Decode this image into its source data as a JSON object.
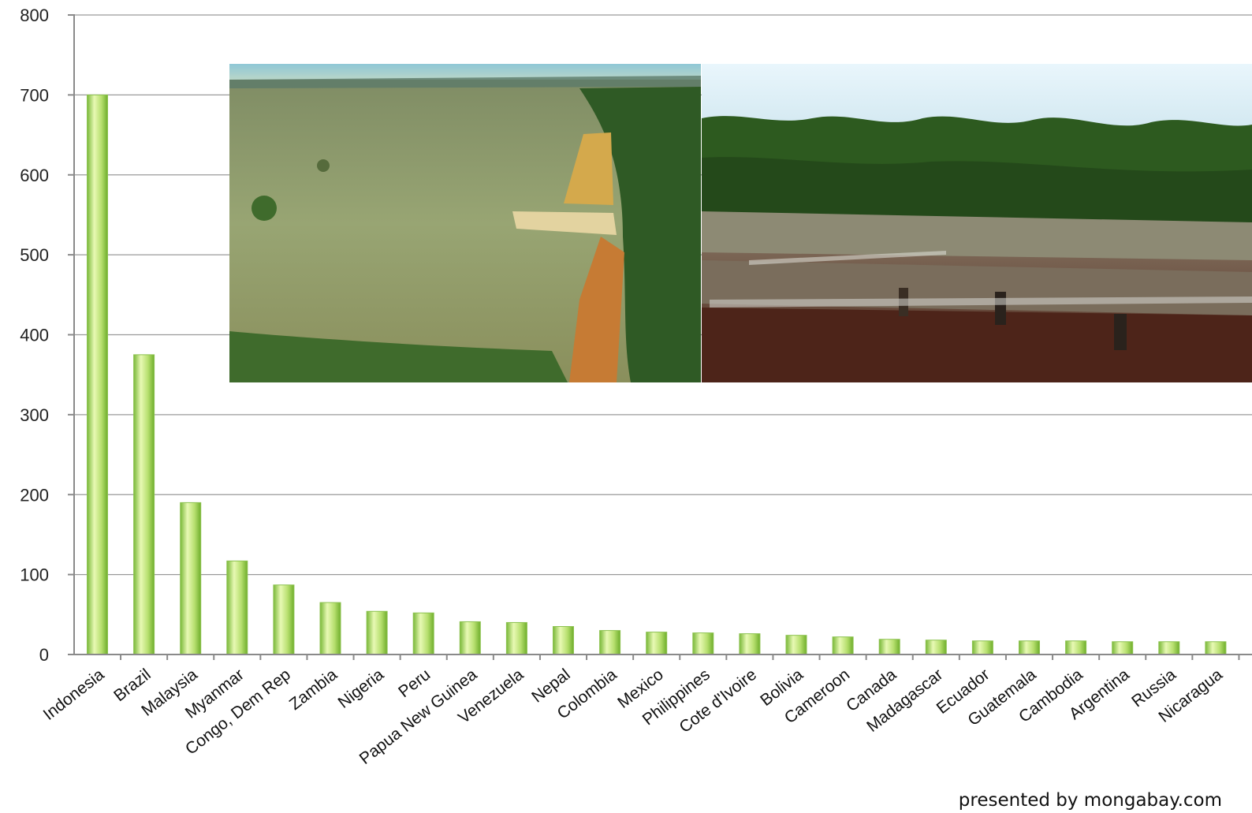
{
  "chart_data": {
    "type": "bar",
    "categories": [
      "Indonesia",
      "Brazil",
      "Malaysia",
      "Myanmar",
      "Congo, Dem Rep",
      "Zambia",
      "Nigeria",
      "Peru",
      "Papua New Guinea",
      "Venezuela",
      "Nepal",
      "Colombia",
      "Mexico",
      "Philippines",
      "Cote d'Ivoire",
      "Bolivia",
      "Cameroon",
      "Canada",
      "Madagascar",
      "Ecuador",
      "Guatemala",
      "Cambodia",
      "Argentina",
      "Russia",
      "Nicaragua"
    ],
    "values": [
      700,
      375,
      190,
      117,
      87,
      65,
      54,
      52,
      41,
      40,
      35,
      30,
      28,
      27,
      26,
      24,
      22,
      19,
      18,
      17,
      17,
      17,
      16,
      16,
      16
    ],
    "ylim": [
      0,
      800
    ],
    "yticks": [
      0,
      100,
      200,
      300,
      400,
      500,
      600,
      700,
      800
    ],
    "grid": true,
    "bar_color": "#a9d86a"
  },
  "credit": "presented by mongabay.com",
  "photos": [
    {
      "name": "aerial-deforestation-photo"
    },
    {
      "name": "cleared-forest-photo"
    }
  ]
}
